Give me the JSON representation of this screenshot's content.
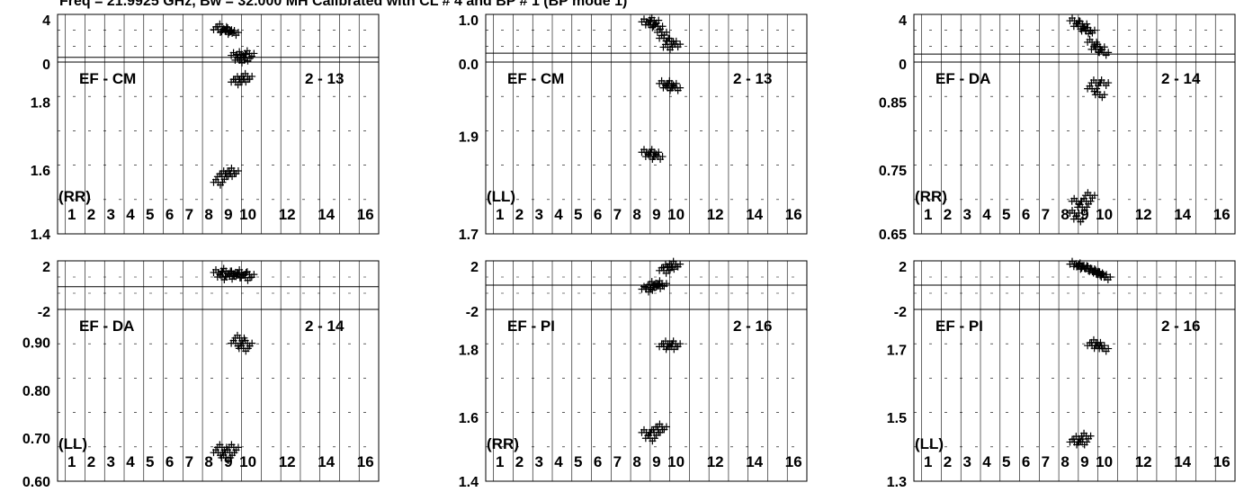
{
  "header": {
    "title": "Freq = 21.9925 GHz, Bw = 32.000 MH   Calibrated with CL # 4 and BP # 1 (BP mode 1)"
  },
  "chart_data": [
    {
      "type": "scatter",
      "baseline": "EF - CM",
      "antenna_pair": "2 - 13",
      "polarization": "(RR)",
      "phase": {
        "yticks": [
          "4",
          "0"
        ],
        "ylim": [
          -0.5,
          4.5
        ],
        "ref": 0,
        "points": [
          [
            8.8,
            2.9
          ],
          [
            9.0,
            3.2
          ],
          [
            9.2,
            2.7
          ],
          [
            9.4,
            2.8
          ],
          [
            9.6,
            2.6
          ],
          [
            9.7,
            0.2
          ],
          [
            9.9,
            -0.3
          ],
          [
            10.0,
            0.3
          ],
          [
            10.2,
            -0.1
          ],
          [
            10.4,
            0.4
          ]
        ]
      },
      "amp": {
        "yticks": [
          "1.8",
          "1.6",
          "1.4"
        ],
        "ylim": [
          1.4,
          2.0
        ],
        "points": [
          [
            8.8,
            1.58
          ],
          [
            9.0,
            1.6
          ],
          [
            9.2,
            1.61
          ],
          [
            9.4,
            1.61
          ],
          [
            9.6,
            1.62
          ],
          [
            9.7,
            1.93
          ],
          [
            9.9,
            1.94
          ],
          [
            10.1,
            1.94
          ],
          [
            10.3,
            1.95
          ]
        ]
      },
      "xticks": [
        "1",
        "2",
        "3",
        "4",
        "5",
        "6",
        "7",
        "8",
        "9",
        "10",
        "12",
        "14",
        "16"
      ]
    },
    {
      "type": "scatter",
      "baseline": "EF - CM",
      "antenna_pair": "2 - 13",
      "polarization": "(LL)",
      "phase": {
        "yticks": [
          "1.0",
          "0.0"
        ],
        "ylim": [
          -0.3,
          1.3
        ],
        "ref": 0,
        "points": [
          [
            8.8,
            1.05
          ],
          [
            9.0,
            0.95
          ],
          [
            9.2,
            1.1
          ],
          [
            9.4,
            0.9
          ],
          [
            9.6,
            0.7
          ],
          [
            9.7,
            0.5
          ],
          [
            9.9,
            0.2
          ],
          [
            10.1,
            0.4
          ],
          [
            10.3,
            0.3
          ]
        ]
      },
      "amp": {
        "yticks": [
          "1.9",
          "1.7"
        ],
        "ylim": [
          1.68,
          2.08
        ],
        "points": [
          [
            8.8,
            1.87
          ],
          [
            9.0,
            1.86
          ],
          [
            9.2,
            1.87
          ],
          [
            9.4,
            1.86
          ],
          [
            9.7,
            2.03
          ],
          [
            9.9,
            2.02
          ],
          [
            10.1,
            2.03
          ],
          [
            10.3,
            2.02
          ]
        ]
      },
      "xticks": [
        "1",
        "2",
        "3",
        "4",
        "5",
        "6",
        "7",
        "8",
        "9",
        "10",
        "12",
        "14",
        "16"
      ]
    },
    {
      "type": "scatter",
      "baseline": "EF - DA",
      "antenna_pair": "2 - 14",
      "polarization": "(RR)",
      "phase": {
        "yticks": [
          "4",
          "0"
        ],
        "ylim": [
          -1,
          5
        ],
        "ref": 0,
        "points": [
          [
            8.8,
            4.2
          ],
          [
            9.0,
            3.5
          ],
          [
            9.2,
            3.8
          ],
          [
            9.4,
            2.9
          ],
          [
            9.6,
            3.0
          ],
          [
            9.7,
            1.5
          ],
          [
            9.9,
            0.6
          ],
          [
            10.1,
            0.9
          ],
          [
            10.3,
            0.2
          ]
        ]
      },
      "amp": {
        "yticks": [
          "0.85",
          "0.75",
          "0.65"
        ],
        "ylim": [
          0.645,
          0.935
        ],
        "points": [
          [
            8.8,
            0.68
          ],
          [
            8.9,
            0.7
          ],
          [
            9.0,
            0.67
          ],
          [
            9.2,
            0.69
          ],
          [
            9.4,
            0.7
          ],
          [
            9.6,
            0.71
          ],
          [
            9.7,
            0.89
          ],
          [
            9.9,
            0.9
          ],
          [
            10.1,
            0.88
          ],
          [
            10.3,
            0.9
          ]
        ]
      },
      "xticks": [
        "1",
        "2",
        "3",
        "4",
        "5",
        "6",
        "7",
        "8",
        "9",
        "10",
        "12",
        "14",
        "16"
      ]
    },
    {
      "type": "scatter",
      "baseline": "EF - DA",
      "antenna_pair": "2 - 14",
      "polarization": "(LL)",
      "phase": {
        "yticks": [
          "2",
          "-2"
        ],
        "ylim": [
          -3.5,
          4
        ],
        "ref": 0,
        "points": [
          [
            8.8,
            2.2
          ],
          [
            9.0,
            1.5
          ],
          [
            9.2,
            2.4
          ],
          [
            9.4,
            1.6
          ],
          [
            9.6,
            2.0
          ],
          [
            9.8,
            1.8
          ],
          [
            10.0,
            2.2
          ],
          [
            10.2,
            1.4
          ],
          [
            10.4,
            1.9
          ]
        ]
      },
      "amp": {
        "yticks": [
          "0.90",
          "0.80",
          "0.70",
          "0.60"
        ],
        "ylim": [
          0.585,
          0.915
        ],
        "points": [
          [
            8.8,
            0.64
          ],
          [
            9.0,
            0.65
          ],
          [
            9.2,
            0.63
          ],
          [
            9.4,
            0.64
          ],
          [
            9.6,
            0.65
          ],
          [
            9.7,
            0.85
          ],
          [
            9.9,
            0.86
          ],
          [
            10.1,
            0.84
          ],
          [
            10.3,
            0.85
          ]
        ]
      },
      "xticks": [
        "1",
        "2",
        "3",
        "4",
        "5",
        "6",
        "7",
        "8",
        "9",
        "10",
        "12",
        "14",
        "16"
      ]
    },
    {
      "type": "scatter",
      "baseline": "EF - PI",
      "antenna_pair": "2 - 16",
      "polarization": "(RR)",
      "phase": {
        "yticks": [
          "2",
          "-2"
        ],
        "ylim": [
          -3,
          3
        ],
        "ref": 0,
        "points": [
          [
            8.8,
            -0.5
          ],
          [
            9.0,
            -0.3
          ],
          [
            9.2,
            0.1
          ],
          [
            9.4,
            -0.1
          ],
          [
            9.6,
            0.2
          ],
          [
            9.7,
            1.8
          ],
          [
            9.9,
            2.2
          ],
          [
            10.1,
            2.3
          ],
          [
            10.3,
            2.6
          ]
        ]
      },
      "amp": {
        "yticks": [
          "1.8",
          "1.6",
          "1.4"
        ],
        "ylim": [
          1.38,
          1.98
        ],
        "points": [
          [
            8.8,
            1.55
          ],
          [
            9.0,
            1.53
          ],
          [
            9.2,
            1.55
          ],
          [
            9.4,
            1.56
          ],
          [
            9.6,
            1.57
          ],
          [
            9.7,
            1.85
          ],
          [
            9.9,
            1.86
          ],
          [
            10.1,
            1.85
          ],
          [
            10.3,
            1.86
          ]
        ]
      },
      "xticks": [
        "1",
        "2",
        "3",
        "4",
        "5",
        "6",
        "7",
        "8",
        "9",
        "10",
        "12",
        "14",
        "16"
      ]
    },
    {
      "type": "scatter",
      "baseline": "EF - PI",
      "antenna_pair": "2 - 16",
      "polarization": "(LL)",
      "phase": {
        "yticks": [
          "2",
          "-2"
        ],
        "ylim": [
          -3,
          3
        ],
        "ref": 0,
        "points": [
          [
            8.8,
            2.6
          ],
          [
            9.0,
            2.3
          ],
          [
            9.2,
            2.4
          ],
          [
            9.4,
            2.1
          ],
          [
            9.6,
            2.0
          ],
          [
            9.8,
            1.7
          ],
          [
            10.0,
            1.5
          ],
          [
            10.2,
            1.3
          ],
          [
            10.4,
            1.0
          ]
        ]
      },
      "amp": {
        "yticks": [
          "1.7",
          "1.5",
          "1.3"
        ],
        "ylim": [
          1.27,
          1.84
        ],
        "points": [
          [
            8.8,
            1.4
          ],
          [
            9.0,
            1.41
          ],
          [
            9.2,
            1.4
          ],
          [
            9.4,
            1.42
          ],
          [
            9.7,
            1.72
          ],
          [
            9.9,
            1.73
          ],
          [
            10.1,
            1.72
          ],
          [
            10.3,
            1.71
          ]
        ]
      },
      "xticks": [
        "1",
        "2",
        "3",
        "4",
        "5",
        "6",
        "7",
        "8",
        "9",
        "10",
        "12",
        "14",
        "16"
      ]
    }
  ]
}
